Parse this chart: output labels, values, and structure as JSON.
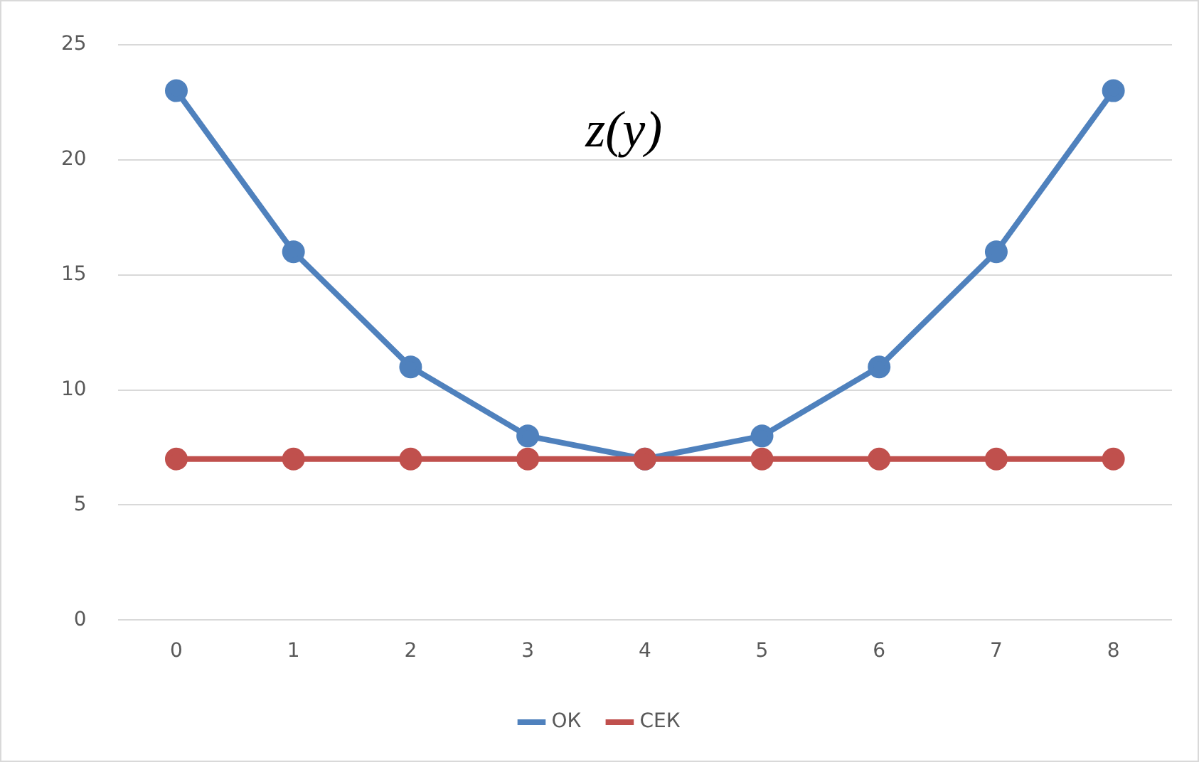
{
  "chart_data": {
    "type": "line",
    "title": "z(y)",
    "categories": [
      "0",
      "1",
      "2",
      "3",
      "4",
      "5",
      "6",
      "7",
      "8"
    ],
    "series": [
      {
        "name": "ОК",
        "color": "#4f81bd",
        "values": [
          23,
          16,
          11,
          8,
          7,
          8,
          11,
          16,
          23
        ]
      },
      {
        "name": "СЕК",
        "color": "#c0504d",
        "values": [
          7,
          7,
          7,
          7,
          7,
          7,
          7,
          7,
          7
        ]
      }
    ],
    "ylim": [
      0,
      25
    ],
    "yticks": [
      0,
      5,
      10,
      15,
      20,
      25
    ],
    "grid": "y",
    "legend": "bottom",
    "marker": "circle",
    "line_style": "solid"
  }
}
